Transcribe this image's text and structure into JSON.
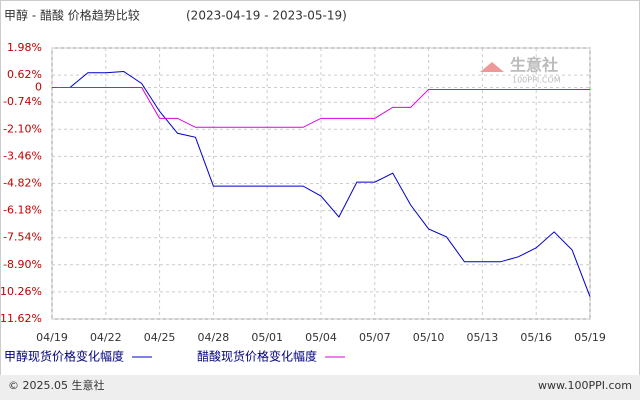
{
  "chart_data": {
    "type": "line",
    "title": "甲醇 - 醋酸 价格趋势比较",
    "subtitle": "(2023-04-19 - 2023-05-19)",
    "categories": [
      "04/19",
      null,
      null,
      "04/22",
      null,
      null,
      "04/25",
      null,
      null,
      "04/28",
      null,
      null,
      "05/01",
      null,
      null,
      "05/04",
      null,
      null,
      "05/07",
      null,
      null,
      "05/10",
      null,
      null,
      "05/13",
      null,
      null,
      "05/16",
      null,
      null,
      "05/19"
    ],
    "series": [
      {
        "name": "甲醇现货价格变化幅度",
        "color": "#0000cc",
        "values": [
          0,
          0,
          0.74,
          0.74,
          0.8,
          0.2,
          -1.2,
          -2.3,
          -2.5,
          -4.95,
          -4.95,
          -4.95,
          -4.95,
          -4.95,
          -4.95,
          -5.45,
          -6.5,
          -4.75,
          -4.75,
          -4.3,
          -5.9,
          -7.1,
          -7.5,
          -8.75,
          -8.75,
          -8.75,
          -8.5,
          -8.05,
          -7.25,
          -8.15,
          -10.5
        ]
      },
      {
        "name": "醋酸现货价格变化幅度",
        "color": "#dd00dd",
        "values": [
          0,
          0,
          0,
          0,
          0,
          0,
          -1.55,
          -1.55,
          -2.0,
          -2.0,
          -2.0,
          -2.0,
          -2.0,
          -2.0,
          -2.0,
          -1.55,
          -1.55,
          -1.55,
          -1.55,
          -1.0,
          -1.0,
          -0.1,
          -0.1,
          -0.1,
          -0.1,
          -0.1,
          -0.1,
          -0.1,
          -0.1,
          -0.1,
          -0.1
        ]
      }
    ],
    "ylim": [
      -11.62,
      1.98
    ],
    "yticks": [
      {
        "value": 1.98,
        "label": "1.98%"
      },
      {
        "value": 0.62,
        "label": "0.62%"
      },
      0,
      {
        "value": -0.74,
        "label": "-0.74%"
      },
      {
        "value": -2.1,
        "label": "-2.10%"
      },
      {
        "value": -3.46,
        "label": "-3.46%"
      },
      {
        "value": -4.82,
        "label": "-4.82%"
      },
      {
        "value": -6.18,
        "label": "-6.18%"
      },
      {
        "value": -7.54,
        "label": "-7.54%"
      },
      {
        "value": -8.9,
        "label": "-8.90%"
      },
      {
        "value": -10.26,
        "label": "-10.26%"
      },
      {
        "value": -11.62,
        "label": "-11.62%"
      }
    ],
    "grid": true,
    "watermark": "生意社",
    "watermark_sub": "100PPI.COM",
    "footer_left": "© 2025.05 生意社",
    "footer_right": "www.100PPI.com"
  }
}
